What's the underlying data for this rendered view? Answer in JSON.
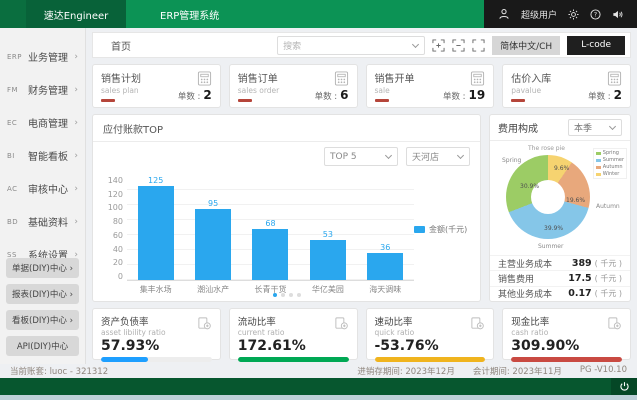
{
  "topbar": {
    "logo": "速达Engineer",
    "app_title": "ERP管理系统",
    "username": "超级用户"
  },
  "sidebar": {
    "items": [
      {
        "code": "ERP",
        "label": "业务管理",
        "chevron": "›"
      },
      {
        "code": "FM",
        "label": "财务管理",
        "chevron": "›"
      },
      {
        "code": "EC",
        "label": "电商管理",
        "chevron": "›"
      },
      {
        "code": "BI",
        "label": "智能看板",
        "chevron": "›"
      },
      {
        "code": "AC",
        "label": "审核中心",
        "chevron": "›"
      },
      {
        "code": "BD",
        "label": "基础资料",
        "chevron": "›"
      },
      {
        "code": "SS",
        "label": "系统设置",
        "chevron": "›"
      }
    ],
    "diy_buttons": [
      {
        "label": "单据(DIY)中心",
        "chevron": "›"
      },
      {
        "label": "报表(DIY)中心",
        "chevron": "›"
      },
      {
        "label": "看板(DIY)中心",
        "chevron": "›"
      },
      {
        "label": "API(DIY)中心",
        "chevron": ""
      }
    ]
  },
  "toolbar": {
    "tab": "首页",
    "search_placeholder": "搜索",
    "lang_button": "简体中文/CH",
    "lcode_button": "L-code"
  },
  "stat_cards": [
    {
      "title": "销售计划",
      "subtitle": "sales plan",
      "count_label": "单数 :",
      "count": "2"
    },
    {
      "title": "销售订单",
      "subtitle": "sales order",
      "count_label": "单数 :",
      "count": "6"
    },
    {
      "title": "销售开单",
      "subtitle": "sale",
      "count_label": "单数 :",
      "count": "19"
    },
    {
      "title": "估价入库",
      "subtitle": "pavalue",
      "count_label": "单数 :",
      "count": "2"
    }
  ],
  "bar_card": {
    "title": "应付账款TOP",
    "top_select": "TOP 5",
    "store_select": "天河店",
    "legend": "金额(千元)"
  },
  "pie_card": {
    "title": "费用构成",
    "period_select": "本季",
    "mini_title": "The rose pie",
    "rows": [
      {
        "label": "主营业务成本",
        "value": "389",
        "unit": "( 千元 )"
      },
      {
        "label": "销售费用",
        "value": "17.5",
        "unit": "( 千元 )"
      },
      {
        "label": "其他业务成本",
        "value": "0.17",
        "unit": "( 千元 )"
      }
    ]
  },
  "chart_data": [
    {
      "type": "bar",
      "title": "应付账款TOP",
      "categories": [
        "集丰水场",
        "潮汕水产",
        "长青干货",
        "华亿美园",
        "海天调味"
      ],
      "values": [
        125,
        95,
        68,
        53,
        36
      ],
      "ylim": [
        0,
        140
      ],
      "ytick_step": 20,
      "grid": true,
      "legend": [
        "金额(千元)"
      ],
      "legend_position": "right",
      "bar_color": "#2aa7ee"
    },
    {
      "type": "pie",
      "title": "费用构成",
      "subtitle": "The rose pie",
      "labels": [
        "Spring",
        "Summer",
        "Autumn",
        "Winter"
      ],
      "values": [
        30.9,
        39.9,
        19.6,
        9.6
      ],
      "colors": [
        "#9ccc65",
        "#85c6e8",
        "#e8a87c",
        "#f6d370"
      ],
      "clockwise_from_top": [
        "Winter",
        "Autumn",
        "Summer",
        "Spring"
      ],
      "legend_position": "top-right"
    }
  ],
  "kpi_cards": [
    {
      "title": "资产负债率",
      "subtitle": "asset libility ratio",
      "value": "57.93%",
      "color": "#1e9fff",
      "fill": 42
    },
    {
      "title": "流动比率",
      "subtitle": "current ratio",
      "value": "172.61%",
      "color": "#00a854",
      "fill": 100
    },
    {
      "title": "速动比率",
      "subtitle": "quick ratio",
      "value": "-53.76%",
      "color": "#f0b41e",
      "fill": 100
    },
    {
      "title": "现金比率",
      "subtitle": "cash ratio",
      "value": "309.90%",
      "color": "#c94a42",
      "fill": 100
    }
  ],
  "statusbar": {
    "account": "当前账套: luoc - 321312",
    "stock_period": "进销存期间: 2023年12月",
    "acct_period": "会计期间: 2023年11月",
    "version": "PG -V10.10"
  }
}
